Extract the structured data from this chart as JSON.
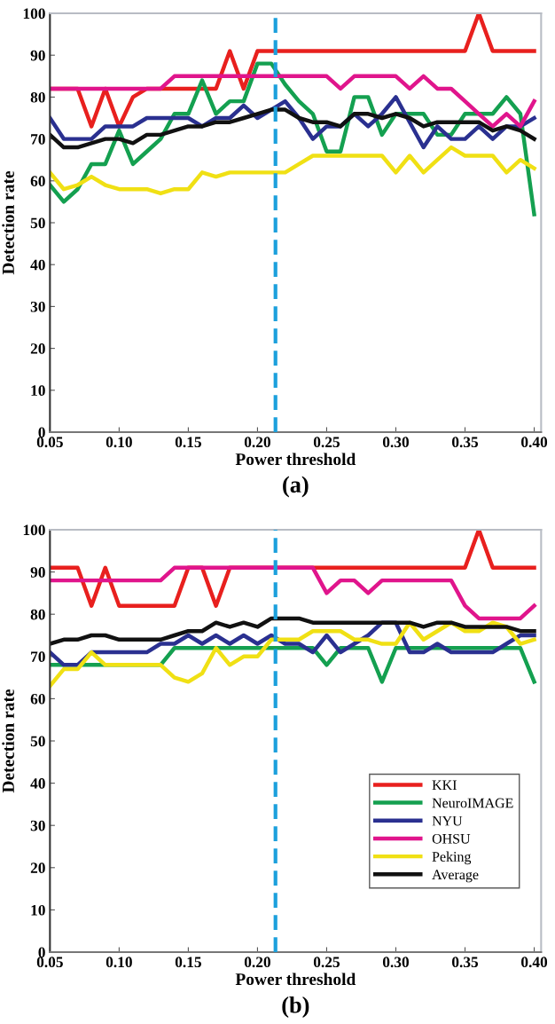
{
  "chart_data": [
    {
      "type": "line",
      "xlabel": "Power threshold",
      "ylabel": "Detection rate",
      "annotations": [
        "(a)"
      ],
      "x": [
        0.05,
        0.06,
        0.07,
        0.08,
        0.09,
        0.1,
        0.11,
        0.12,
        0.13,
        0.14,
        0.15,
        0.16,
        0.17,
        0.18,
        0.19,
        0.2,
        0.21,
        0.22,
        0.23,
        0.24,
        0.25,
        0.26,
        0.27,
        0.28,
        0.29,
        0.3,
        0.31,
        0.32,
        0.33,
        0.34,
        0.35,
        0.36,
        0.37,
        0.38,
        0.39,
        0.4
      ],
      "series": [
        {
          "color": "#e8201e",
          "values": [
            82,
            82,
            82,
            73,
            82,
            73,
            80,
            82,
            82,
            82,
            82,
            82,
            82,
            91,
            82,
            91,
            91,
            91,
            91,
            91,
            91,
            91,
            91,
            91,
            91,
            91,
            91,
            91,
            91,
            91,
            91,
            100,
            91,
            91,
            91,
            91
          ]
        },
        {
          "color": "#14a050",
          "values": [
            59,
            55,
            58,
            64,
            64,
            72,
            64,
            67,
            70,
            76,
            76,
            84,
            76,
            79,
            79,
            88,
            88,
            83,
            79,
            76,
            67,
            67,
            80,
            80,
            71,
            76,
            76,
            76,
            71,
            71,
            76,
            76,
            76,
            80,
            76,
            52
          ]
        },
        {
          "color": "#2a3090",
          "values": [
            75,
            70,
            70,
            70,
            73,
            73,
            73,
            75,
            75,
            75,
            75,
            73,
            75,
            75,
            78,
            75,
            77,
            79,
            75,
            70,
            73,
            73,
            76,
            73,
            76,
            80,
            74,
            68,
            73,
            70,
            70,
            73,
            70,
            73,
            73,
            75
          ]
        },
        {
          "color": "#e0158c",
          "values": [
            82,
            82,
            82,
            82,
            82,
            82,
            82,
            82,
            82,
            85,
            85,
            85,
            85,
            85,
            85,
            85,
            85,
            85,
            85,
            85,
            85,
            82,
            85,
            85,
            85,
            85,
            82,
            85,
            82,
            82,
            79,
            76,
            73,
            76,
            73,
            79
          ]
        },
        {
          "color": "#f0e014",
          "values": [
            62,
            58,
            59,
            61,
            59,
            58,
            58,
            58,
            57,
            58,
            58,
            62,
            61,
            62,
            62,
            62,
            62,
            62,
            64,
            66,
            66,
            66,
            66,
            66,
            66,
            62,
            66,
            62,
            65,
            68,
            66,
            66,
            66,
            62,
            65,
            63
          ]
        },
        {
          "color": "#111111",
          "values": [
            71,
            68,
            68,
            69,
            70,
            70,
            69,
            71,
            71,
            72,
            73,
            73,
            74,
            74,
            75,
            76,
            77,
            77,
            75,
            74,
            74,
            73,
            76,
            76,
            75,
            76,
            75,
            73,
            74,
            74,
            74,
            74,
            72,
            73,
            72,
            70
          ]
        }
      ],
      "xlim": [
        0.05,
        0.405
      ],
      "ylim": [
        0,
        100
      ],
      "xticks": [
        0.05,
        {
          "value": 0.1,
          "label": "0.10"
        },
        0.15,
        {
          "value": 0.2,
          "label": "0.20"
        },
        0.25,
        {
          "value": 0.3,
          "label": "0.30"
        },
        0.35,
        {
          "value": 0.4,
          "label": "0.40"
        }
      ],
      "yticks": [
        0,
        10,
        20,
        30,
        40,
        50,
        60,
        70,
        80,
        90,
        100
      ],
      "ref_lines": [
        {
          "axis": "x",
          "value": 0.213,
          "label": null,
          "color": "#1ca0dc",
          "line_style": "dashed"
        }
      ],
      "grid": false,
      "legend": false,
      "marker": "none",
      "line_style": "solid"
    },
    {
      "type": "line",
      "xlabel": "Power threshold",
      "ylabel": "Detection rate",
      "annotations": [
        "(b)"
      ],
      "x": [
        0.05,
        0.06,
        0.07,
        0.08,
        0.09,
        0.1,
        0.11,
        0.12,
        0.13,
        0.14,
        0.15,
        0.16,
        0.17,
        0.18,
        0.19,
        0.2,
        0.21,
        0.22,
        0.23,
        0.24,
        0.25,
        0.26,
        0.27,
        0.28,
        0.29,
        0.3,
        0.31,
        0.32,
        0.33,
        0.34,
        0.35,
        0.36,
        0.37,
        0.38,
        0.39,
        0.4
      ],
      "series": [
        {
          "name": "KKI",
          "color": "#e8201e",
          "values": [
            91,
            91,
            91,
            82,
            91,
            82,
            82,
            82,
            82,
            82,
            91,
            91,
            82,
            91,
            91,
            91,
            91,
            91,
            91,
            91,
            91,
            91,
            91,
            91,
            91,
            91,
            91,
            91,
            91,
            91,
            91,
            100,
            91,
            91,
            91,
            91
          ]
        },
        {
          "name": "NeuroIMAGE",
          "color": "#14a050",
          "values": [
            68,
            68,
            68,
            68,
            68,
            68,
            68,
            68,
            68,
            72,
            72,
            72,
            72,
            72,
            72,
            72,
            72,
            72,
            72,
            72,
            68,
            72,
            72,
            72,
            64,
            72,
            72,
            72,
            72,
            72,
            72,
            72,
            72,
            72,
            72,
            64
          ]
        },
        {
          "name": "NYU",
          "color": "#2a3090",
          "values": [
            71,
            68,
            68,
            71,
            71,
            71,
            71,
            71,
            73,
            73,
            75,
            73,
            75,
            73,
            75,
            73,
            75,
            73,
            73,
            71,
            75,
            71,
            73,
            75,
            78,
            78,
            71,
            71,
            73,
            71,
            71,
            71,
            71,
            73,
            75,
            75
          ]
        },
        {
          "name": "OHSU",
          "color": "#e0158c",
          "values": [
            88,
            88,
            88,
            88,
            88,
            88,
            88,
            88,
            88,
            91,
            91,
            91,
            91,
            91,
            91,
            91,
            91,
            91,
            91,
            91,
            85,
            88,
            88,
            85,
            88,
            88,
            88,
            88,
            88,
            88,
            82,
            79,
            79,
            79,
            79,
            82
          ]
        },
        {
          "name": "Peking",
          "color": "#f0e014",
          "values": [
            63,
            67,
            67,
            71,
            68,
            68,
            68,
            68,
            68,
            65,
            64,
            66,
            72,
            68,
            70,
            70,
            74,
            74,
            74,
            76,
            76,
            76,
            74,
            74,
            73,
            73,
            78,
            74,
            76,
            78,
            76,
            76,
            78,
            77,
            73,
            74
          ]
        },
        {
          "name": "Average",
          "color": "#111111",
          "values": [
            73,
            74,
            74,
            75,
            75,
            74,
            74,
            74,
            74,
            75,
            76,
            76,
            78,
            77,
            78,
            77,
            79,
            79,
            79,
            78,
            78,
            78,
            78,
            78,
            78,
            78,
            78,
            77,
            78,
            78,
            77,
            77,
            77,
            77,
            76,
            76
          ]
        }
      ],
      "xlim": [
        0.05,
        0.405
      ],
      "ylim": [
        0,
        100
      ],
      "xticks": [
        0.05,
        {
          "value": 0.1,
          "label": "0.10"
        },
        0.15,
        {
          "value": 0.2,
          "label": "0.20"
        },
        0.25,
        {
          "value": 0.3,
          "label": "0.30"
        },
        0.35,
        {
          "value": 0.4,
          "label": "0.40"
        }
      ],
      "yticks": [
        0,
        10,
        20,
        30,
        40,
        50,
        60,
        70,
        80,
        90,
        100
      ],
      "ref_lines": [
        {
          "axis": "x",
          "value": 0.213,
          "label": null,
          "color": "#1ca0dc",
          "line_style": "dashed"
        }
      ],
      "grid": false,
      "legend": "bottom right",
      "marker": "none",
      "line_style": "solid"
    }
  ]
}
